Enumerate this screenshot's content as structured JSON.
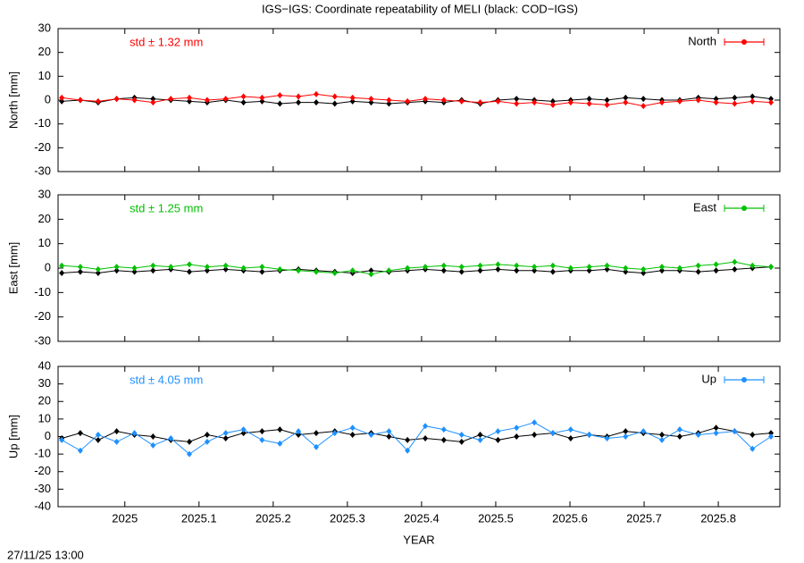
{
  "title": "IGS−IGS: Coordinate repeatability of MELI (black: COD−IGS)",
  "timestamp": "27/11/25 13:00",
  "chart_data": [
    {
      "type": "line",
      "ylabel": "North [mm]",
      "annotation": "std ± 1.32 mm",
      "xlim": [
        2024.91,
        2025.883
      ],
      "xticks": [
        2025,
        2025.1,
        2025.2,
        2025.3,
        2025.4,
        2025.5,
        2025.6,
        2025.7,
        2025.8
      ],
      "ylim": [
        -30,
        30
      ],
      "yticks": [
        -30,
        -20,
        -10,
        0,
        10,
        20,
        30
      ],
      "x": [
        2024.915,
        2024.94,
        2024.964,
        2024.989,
        2025.013,
        2025.038,
        2025.062,
        2025.087,
        2025.111,
        2025.136,
        2025.16,
        2025.185,
        2025.209,
        2025.234,
        2025.258,
        2025.283,
        2025.307,
        2025.332,
        2025.356,
        2025.381,
        2025.405,
        2025.43,
        2025.454,
        2025.479,
        2025.503,
        2025.528,
        2025.552,
        2025.577,
        2025.601,
        2025.626,
        2025.65,
        2025.675,
        2025.699,
        2025.724,
        2025.748,
        2025.773,
        2025.797,
        2025.822,
        2025.846,
        2025.871
      ],
      "series": [
        {
          "color": "#000000",
          "values": [
            -0.5,
            0,
            -1,
            0.5,
            1,
            0.5,
            0,
            -0.5,
            -1,
            0,
            -1,
            -0.5,
            -1.5,
            -1,
            -1,
            -1.5,
            -0.5,
            -1,
            -1.5,
            -1,
            -0.5,
            -1,
            0,
            -1.5,
            0,
            0.5,
            0,
            -0.5,
            0,
            0.5,
            0,
            1,
            0.5,
            0,
            0,
            1,
            0.5,
            1,
            1.5,
            0.5
          ]
        },
        {
          "name": "North",
          "color": "#ff0000",
          "values": [
            1,
            0,
            -0.5,
            0.5,
            0,
            -1,
            0.5,
            1,
            0,
            0.5,
            1.5,
            1,
            2,
            1.5,
            2.5,
            1.5,
            1,
            0.5,
            0,
            -0.5,
            0.5,
            0,
            -0.5,
            -1,
            -0.5,
            -1.5,
            -1,
            -2,
            -1,
            -1.5,
            -2,
            -1,
            -2.5,
            -1,
            -0.5,
            0,
            -1,
            -1.5,
            -0.5,
            -1
          ]
        }
      ]
    },
    {
      "type": "line",
      "ylabel": "East [mm]",
      "annotation": "std ± 1.25 mm",
      "xlim": [
        2024.91,
        2025.883
      ],
      "xticks": [
        2025,
        2025.1,
        2025.2,
        2025.3,
        2025.4,
        2025.5,
        2025.6,
        2025.7,
        2025.8
      ],
      "ylim": [
        -30,
        30
      ],
      "yticks": [
        -30,
        -20,
        -10,
        0,
        10,
        20,
        30
      ],
      "x": [
        2024.915,
        2024.94,
        2024.964,
        2024.989,
        2025.013,
        2025.038,
        2025.062,
        2025.087,
        2025.111,
        2025.136,
        2025.16,
        2025.185,
        2025.209,
        2025.234,
        2025.258,
        2025.283,
        2025.307,
        2025.332,
        2025.356,
        2025.381,
        2025.405,
        2025.43,
        2025.454,
        2025.479,
        2025.503,
        2025.528,
        2025.552,
        2025.577,
        2025.601,
        2025.626,
        2025.65,
        2025.675,
        2025.699,
        2025.724,
        2025.748,
        2025.773,
        2025.797,
        2025.822,
        2025.846,
        2025.871
      ],
      "series": [
        {
          "color": "#000000",
          "values": [
            -2,
            -1.5,
            -2,
            -1,
            -1.5,
            -1,
            -0.5,
            -1.5,
            -1,
            -0.5,
            -1,
            -1.5,
            -1,
            -0.5,
            -1,
            -1.5,
            -2,
            -1,
            -1.5,
            -1,
            -0.5,
            -1,
            -1.5,
            -1,
            -0.5,
            -1,
            -1,
            -1.5,
            -1,
            -1,
            -0.5,
            -1.5,
            -2,
            -1,
            -1,
            -1.5,
            -1,
            -0.5,
            0,
            0.5
          ]
        },
        {
          "name": "East",
          "color": "#00c000",
          "values": [
            1,
            0.5,
            -0.5,
            0.5,
            0,
            1,
            0.5,
            1.5,
            0.5,
            1,
            0,
            0.5,
            -0.5,
            -1,
            -1.5,
            -2,
            -1,
            -2.5,
            -1,
            0,
            0.5,
            1,
            0.5,
            1,
            1.5,
            1,
            0.5,
            1,
            0,
            0.5,
            1,
            0,
            -0.5,
            0.5,
            0,
            1,
            1.5,
            2.5,
            1,
            0.5
          ]
        }
      ]
    },
    {
      "type": "line",
      "ylabel": "Up [mm]",
      "annotation": "std ± 4.05 mm",
      "xlabel": "YEAR",
      "xlim": [
        2024.91,
        2025.883
      ],
      "xticks": [
        2025,
        2025.1,
        2025.2,
        2025.3,
        2025.4,
        2025.5,
        2025.6,
        2025.7,
        2025.8
      ],
      "ylim": [
        -40,
        40
      ],
      "yticks": [
        -40,
        -30,
        -20,
        -10,
        0,
        10,
        20,
        30,
        40
      ],
      "x": [
        2024.915,
        2024.94,
        2024.964,
        2024.989,
        2025.013,
        2025.038,
        2025.062,
        2025.087,
        2025.111,
        2025.136,
        2025.16,
        2025.185,
        2025.209,
        2025.234,
        2025.258,
        2025.283,
        2025.307,
        2025.332,
        2025.356,
        2025.381,
        2025.405,
        2025.43,
        2025.454,
        2025.479,
        2025.503,
        2025.528,
        2025.552,
        2025.577,
        2025.601,
        2025.626,
        2025.65,
        2025.675,
        2025.699,
        2025.724,
        2025.748,
        2025.773,
        2025.797,
        2025.822,
        2025.846,
        2025.871
      ],
      "series": [
        {
          "color": "#000000",
          "values": [
            -1,
            2,
            -2,
            3,
            1,
            0,
            -2,
            -3,
            1,
            -1,
            2,
            3,
            4,
            1,
            2,
            3,
            1,
            2,
            0,
            -2,
            -1,
            -2,
            -3,
            1,
            -2,
            0,
            1,
            2,
            -1,
            1,
            0,
            3,
            2,
            1,
            0,
            2,
            5,
            3,
            1,
            2
          ]
        },
        {
          "name": "Up",
          "color": "#1e90ff",
          "values": [
            -2,
            -8,
            1,
            -3,
            2,
            -5,
            -1,
            -10,
            -3,
            2,
            4,
            -2,
            -4,
            3,
            -6,
            2,
            5,
            1,
            3,
            -8,
            6,
            4,
            1,
            -2,
            3,
            5,
            8,
            2,
            4,
            1,
            -1,
            0,
            3,
            -2,
            4,
            1,
            2,
            3,
            -7,
            0
          ]
        }
      ]
    }
  ]
}
